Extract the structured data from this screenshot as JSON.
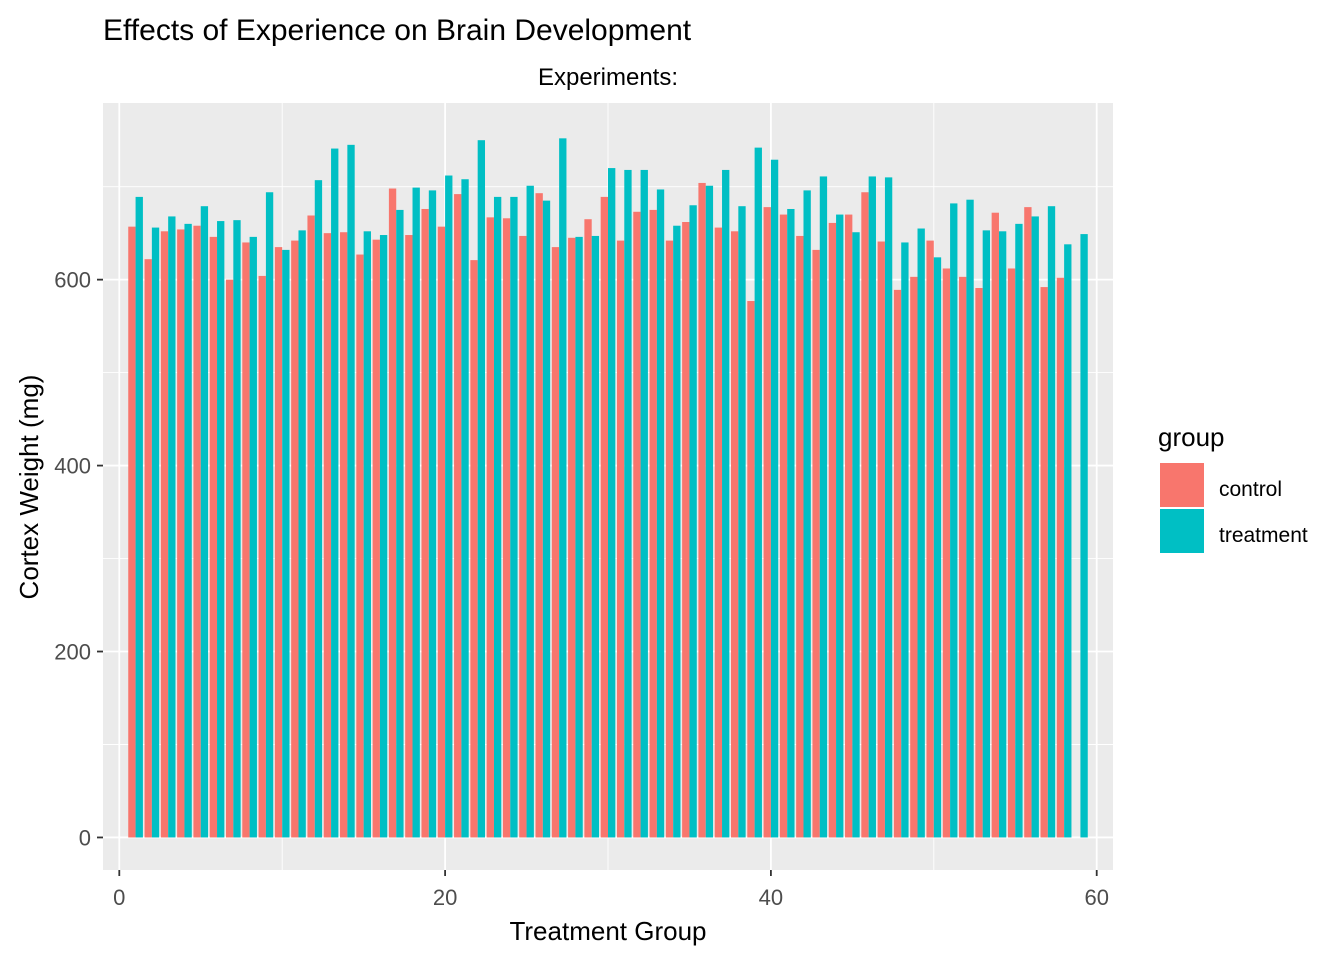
{
  "chart_data": {
    "type": "bar",
    "title": "Effects of Experience on Brain Development",
    "subtitle": "Experiments:",
    "xlabel": "Treatment Group",
    "ylabel": "Cortex Weight (mg)",
    "xlim": [
      -1,
      61
    ],
    "ylim": [
      -35,
      790
    ],
    "x_ticks": [
      0,
      20,
      40,
      60
    ],
    "y_ticks": [
      0,
      200,
      400,
      600
    ],
    "grid": true,
    "legend": {
      "title": "group",
      "position": "right"
    },
    "x": [
      1,
      2,
      3,
      4,
      5,
      6,
      7,
      8,
      9,
      10,
      11,
      12,
      13,
      14,
      15,
      16,
      17,
      18,
      19,
      20,
      21,
      22,
      23,
      24,
      25,
      26,
      27,
      28,
      29,
      30,
      31,
      32,
      33,
      34,
      35,
      36,
      37,
      38,
      39,
      40,
      41,
      42,
      43,
      44,
      45,
      46,
      47,
      48,
      49,
      50,
      51,
      52,
      53,
      54,
      55,
      56,
      57,
      58,
      59
    ],
    "series": [
      {
        "name": "control",
        "color": "#F8766D",
        "values": [
          657,
          622,
          652,
          654,
          658,
          646,
          600,
          640,
          604,
          635,
          642,
          669,
          650,
          651,
          627,
          643,
          698,
          648,
          676,
          657,
          692,
          621,
          667,
          666,
          647,
          693,
          635,
          645,
          665,
          689,
          642,
          673,
          675,
          642,
          662,
          704,
          656,
          652,
          577,
          678,
          670,
          647,
          632,
          661,
          670,
          694,
          641,
          589,
          603,
          642,
          612,
          603,
          591,
          672,
          612,
          678,
          592,
          602,
          0
        ],
        "note_last": "no control bar shown at x=59"
      },
      {
        "name": "treatment",
        "color": "#00BFC4",
        "values": [
          689,
          656,
          668,
          660,
          679,
          663,
          664,
          646,
          694,
          632,
          653,
          707,
          741,
          745,
          652,
          648,
          675,
          699,
          696,
          712,
          708,
          750,
          689,
          689,
          701,
          685,
          752,
          646,
          647,
          720,
          718,
          718,
          697,
          658,
          680,
          701,
          718,
          679,
          742,
          729,
          676,
          696,
          711,
          670,
          651,
          711,
          710,
          640,
          655,
          624,
          682,
          686,
          653,
          652,
          660,
          668,
          679,
          638,
          649
        ]
      }
    ]
  }
}
